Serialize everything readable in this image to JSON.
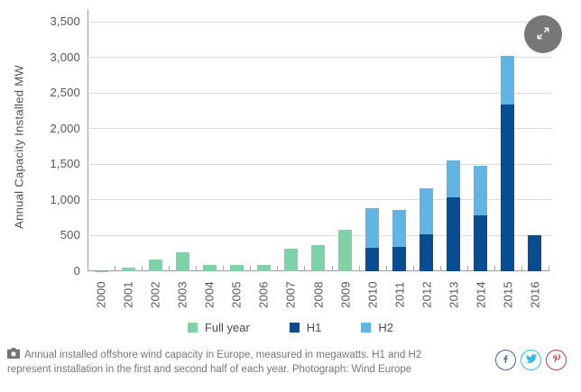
{
  "chart_data": {
    "type": "bar",
    "stacked": true,
    "title": "",
    "xlabel": "",
    "ylabel": "Annual Capacity Installed MW",
    "ylim": [
      0,
      3500
    ],
    "y_tick_step": 500,
    "y_tick_labels": [
      "3,500",
      "3,000",
      "2,500",
      "2,000",
      "1,500",
      "1,000",
      "500",
      "0"
    ],
    "grid": "horizontal",
    "legend_position": "bottom",
    "categories": [
      "2000",
      "2001",
      "2002",
      "2003",
      "2004",
      "2005",
      "2006",
      "2007",
      "2008",
      "2009",
      "2010",
      "2011",
      "2012",
      "2013",
      "2014",
      "2015",
      "2016"
    ],
    "series": [
      {
        "name": "Full year",
        "color": "#7fd1a7",
        "values": [
          5,
          50,
          170,
          270,
          90,
          90,
          90,
          315,
          370,
          580,
          null,
          null,
          null,
          null,
          null,
          null,
          null
        ]
      },
      {
        "name": "H1",
        "color": "#084d92",
        "values": [
          null,
          null,
          null,
          null,
          null,
          null,
          null,
          null,
          null,
          null,
          330,
          345,
          520,
          1030,
          780,
          2340,
          510
        ]
      },
      {
        "name": "H2",
        "color": "#62b4e4",
        "values": [
          null,
          null,
          null,
          null,
          null,
          null,
          null,
          null,
          null,
          null,
          550,
          520,
          645,
          530,
          700,
          680,
          null
        ]
      }
    ]
  },
  "caption": {
    "text": "Annual installed offshore wind capacity in Europe, measured in megawatts. H1 and H2 represent installation in the first and second half of each year.",
    "credit": "Photograph: Wind Europe"
  },
  "icons": {
    "expand": "expand-arrows",
    "caption": "camera"
  },
  "social": {
    "items": [
      {
        "name": "facebook",
        "color": "#41619c"
      },
      {
        "name": "twitter",
        "color": "#2fbdee"
      },
      {
        "name": "pinterest",
        "color": "#c0413d"
      }
    ]
  },
  "colors": {
    "grid": "#dadada",
    "axis": "#9b9b9b",
    "tick_text": "#565656",
    "caption_text": "#767676",
    "expand_bg": "#6d6d6d",
    "background": "#ffffff"
  }
}
